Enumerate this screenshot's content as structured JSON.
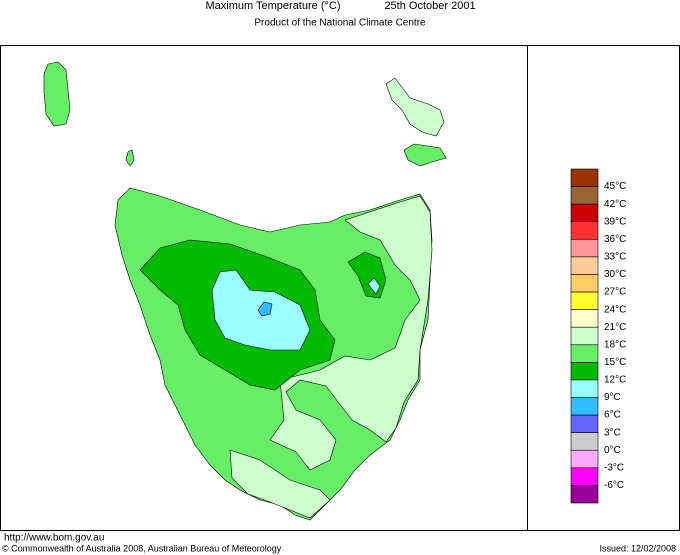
{
  "header": {
    "title": "Maximum Temperature (°C)",
    "date": "25th October 2001",
    "subtitle": "Product of the National Climate Centre"
  },
  "legend": {
    "colors": [
      "#993300",
      "#996633",
      "#cc0000",
      "#ff3333",
      "#ff9999",
      "#ffcc99",
      "#ffcc66",
      "#ffff33",
      "#ffffcc",
      "#ccffcc",
      "#66ee66",
      "#00bb00",
      "#99ffff",
      "#33bbff",
      "#6666ff",
      "#cccccc",
      "#ffaaff",
      "#ff00ff",
      "#990099"
    ],
    "labels": [
      "45°C",
      "42°C",
      "39°C",
      "36°C",
      "33°C",
      "30°C",
      "27°C",
      "24°C",
      "21°C",
      "18°C",
      "15°C",
      "12°C",
      "9°C",
      "6°C",
      "3°C",
      "0°C",
      "-3°C",
      "-6°C"
    ]
  },
  "footer": {
    "url": "http://www.bom.gov.au",
    "copyright": "© Commonwealth of Australia 2008, Australian Bureau of Meteorology",
    "issued": "Issued: 12/02/2008"
  }
}
